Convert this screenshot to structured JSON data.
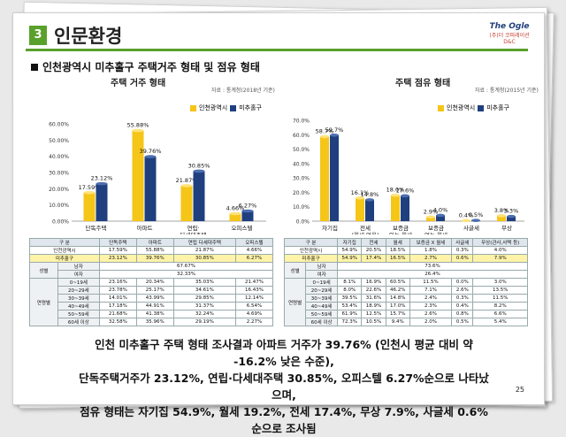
{
  "header": {
    "section_number": "3",
    "title": "인문환경",
    "logo_top": "The Ogle",
    "logo_bottom": "(주)더 코퍼레이션 D&C"
  },
  "subtitle": "인천광역시 미추홀구 주택거주 형태 및 점유 형태",
  "chart_data": [
    {
      "type": "bar",
      "title": "주택 거주 형태",
      "source": "자료 : 통계청(2018년 기준)",
      "categories": [
        "단독주택",
        "아파트",
        "연립·\n다세대주택",
        "오피스텔"
      ],
      "category_lines": [
        [
          "단독주택"
        ],
        [
          "아파트"
        ],
        [
          "연립·",
          "다세대주택"
        ],
        [
          "오피스텔"
        ]
      ],
      "series": [
        {
          "name": "인천광역시",
          "values": [
            17.59,
            55.88,
            21.87,
            4.66
          ],
          "labels": [
            "17.59%",
            "55.88%",
            "21.87%",
            "4.66%"
          ]
        },
        {
          "name": "미추홀구",
          "values": [
            23.12,
            39.76,
            30.85,
            6.27
          ],
          "labels": [
            "23.12%",
            "39.76%",
            "30.85%",
            "6.27%"
          ]
        }
      ],
      "yticks": [
        "0.00%",
        "10.00%",
        "20.00%",
        "30.00%",
        "40.00%",
        "50.00%",
        "60.00%"
      ],
      "ylim": [
        0,
        60
      ],
      "colors": {
        "인천광역시": "#f5c518",
        "미추홀구": "#1f3f7f"
      },
      "legend": "top-right"
    },
    {
      "type": "bar",
      "title": "주택 점유 형태",
      "source": "자료 : 통계청(2015년 기준)",
      "categories": [
        "자기집",
        "전세\n(월세 없음)",
        "보증금\n있는 월세",
        "보증금\n없는 월세",
        "사글세",
        "무상"
      ],
      "category_lines": [
        [
          "자기집"
        ],
        [
          "전세",
          "(월세 없음)"
        ],
        [
          "보증금",
          "있는 월세"
        ],
        [
          "보증금",
          "없는 월세"
        ],
        [
          "사글세"
        ],
        [
          "무상"
        ]
      ],
      "series": [
        {
          "name": "인천광역시",
          "values": [
            58.7,
            16.1,
            18.0,
            2.9,
            0.4,
            3.8
          ],
          "labels": [
            "58.7%",
            "16.1%",
            "18.0%",
            "2.9%",
            "0.4%",
            "3.8%"
          ]
        },
        {
          "name": "미추홀구",
          "values": [
            59.7,
            14.8,
            17.6,
            4.0,
            0.5,
            3.3
          ],
          "labels": [
            "59.7%",
            "14.8%",
            "17.6%",
            "4.0%",
            "0.5%",
            "3.3%"
          ]
        }
      ],
      "yticks": [
        "0.0%",
        "10.0%",
        "20.0%",
        "30.0%",
        "40.0%",
        "50.0%",
        "60.0%",
        "70.0%"
      ],
      "ylim": [
        0,
        70
      ],
      "colors": {
        "인천광역시": "#f5c518",
        "미추홀구": "#1f3f7f"
      },
      "legend": "top-right"
    }
  ],
  "table_left": {
    "headers": [
      "구 분",
      "단독주택",
      "아파트",
      "연립\n다세대주택",
      "오피스텔"
    ],
    "rows": [
      [
        "인천광역시",
        "17.59%",
        "55.88%",
        "21.87%",
        "4.66%"
      ],
      [
        "미추홀구",
        "23.12%",
        "39.76%",
        "30.85%",
        "6.27%"
      ]
    ],
    "gender_label": "성별",
    "male": "남자",
    "male_val": "67.67%",
    "female": "여자",
    "female_val": "32.33%",
    "age_label": "연령별",
    "age_rows": [
      [
        "0~19세",
        "23.16%",
        "20.34%",
        "35.03%",
        "21.47%"
      ],
      [
        "20~29세",
        "23.78%",
        "25.17%",
        "34.61%",
        "16.43%"
      ],
      [
        "30~39세",
        "14.01%",
        "43.99%",
        "29.85%",
        "12.14%"
      ],
      [
        "40~49세",
        "17.18%",
        "44.91%",
        "31.37%",
        "6.54%"
      ],
      [
        "50~59세",
        "21.68%",
        "41.38%",
        "32.24%",
        "4.69%"
      ],
      [
        "60세 이상",
        "32.58%",
        "35.96%",
        "29.19%",
        "2.27%"
      ]
    ]
  },
  "table_right": {
    "headers": [
      "구 분",
      "자기집",
      "전세",
      "월세",
      "보증금 X 월세",
      "사글세",
      "무상(관사,사택 등)"
    ],
    "rows": [
      [
        "인천광역시",
        "54.9%",
        "20.5%",
        "18.5%",
        "1.8%",
        "0.3%",
        "4.0%"
      ],
      [
        "미추홀구",
        "54.9%",
        "17.4%",
        "16.5%",
        "2.7%",
        "0.6%",
        "7.9%"
      ]
    ],
    "gender_label": "성별",
    "male": "남자",
    "male_val": "73.6%",
    "female": "여자",
    "female_val": "26.4%",
    "age_label": "연령별",
    "age_rows": [
      [
        "0~19세",
        "8.1%",
        "16.9%",
        "60.5%",
        "11.5%",
        "0.0%",
        "3.0%"
      ],
      [
        "20~29세",
        "8.0%",
        "22.6%",
        "46.2%",
        "7.1%",
        "2.6%",
        "13.5%"
      ],
      [
        "30~39세",
        "39.5%",
        "31.6%",
        "14.8%",
        "2.4%",
        "0.3%",
        "11.5%"
      ],
      [
        "40~49세",
        "53.4%",
        "18.9%",
        "17.0%",
        "2.3%",
        "0.4%",
        "8.2%"
      ],
      [
        "50~59세",
        "61.9%",
        "12.5%",
        "15.7%",
        "2.6%",
        "0.8%",
        "6.6%"
      ],
      [
        "60세 이상",
        "72.3%",
        "10.5%",
        "9.4%",
        "2.0%",
        "0.5%",
        "5.4%"
      ]
    ]
  },
  "summary": [
    "인천 미추홀구 주택 형태 조사결과 아파트 거주가 39.76% (인천시 평균 대비 약 -16.2% 낮은 수준),",
    "단독주택거주가 23.12%, 연립·다세대주택 30.85%, 오피스텔 6.27%순으로 나타났으며,",
    "점유 형태는 자기집 54.9%, 월세 19.2%, 전세 17.4%, 무상 7.9%, 사글세 0.6% 순으로 조사됨"
  ],
  "page_number": "25"
}
